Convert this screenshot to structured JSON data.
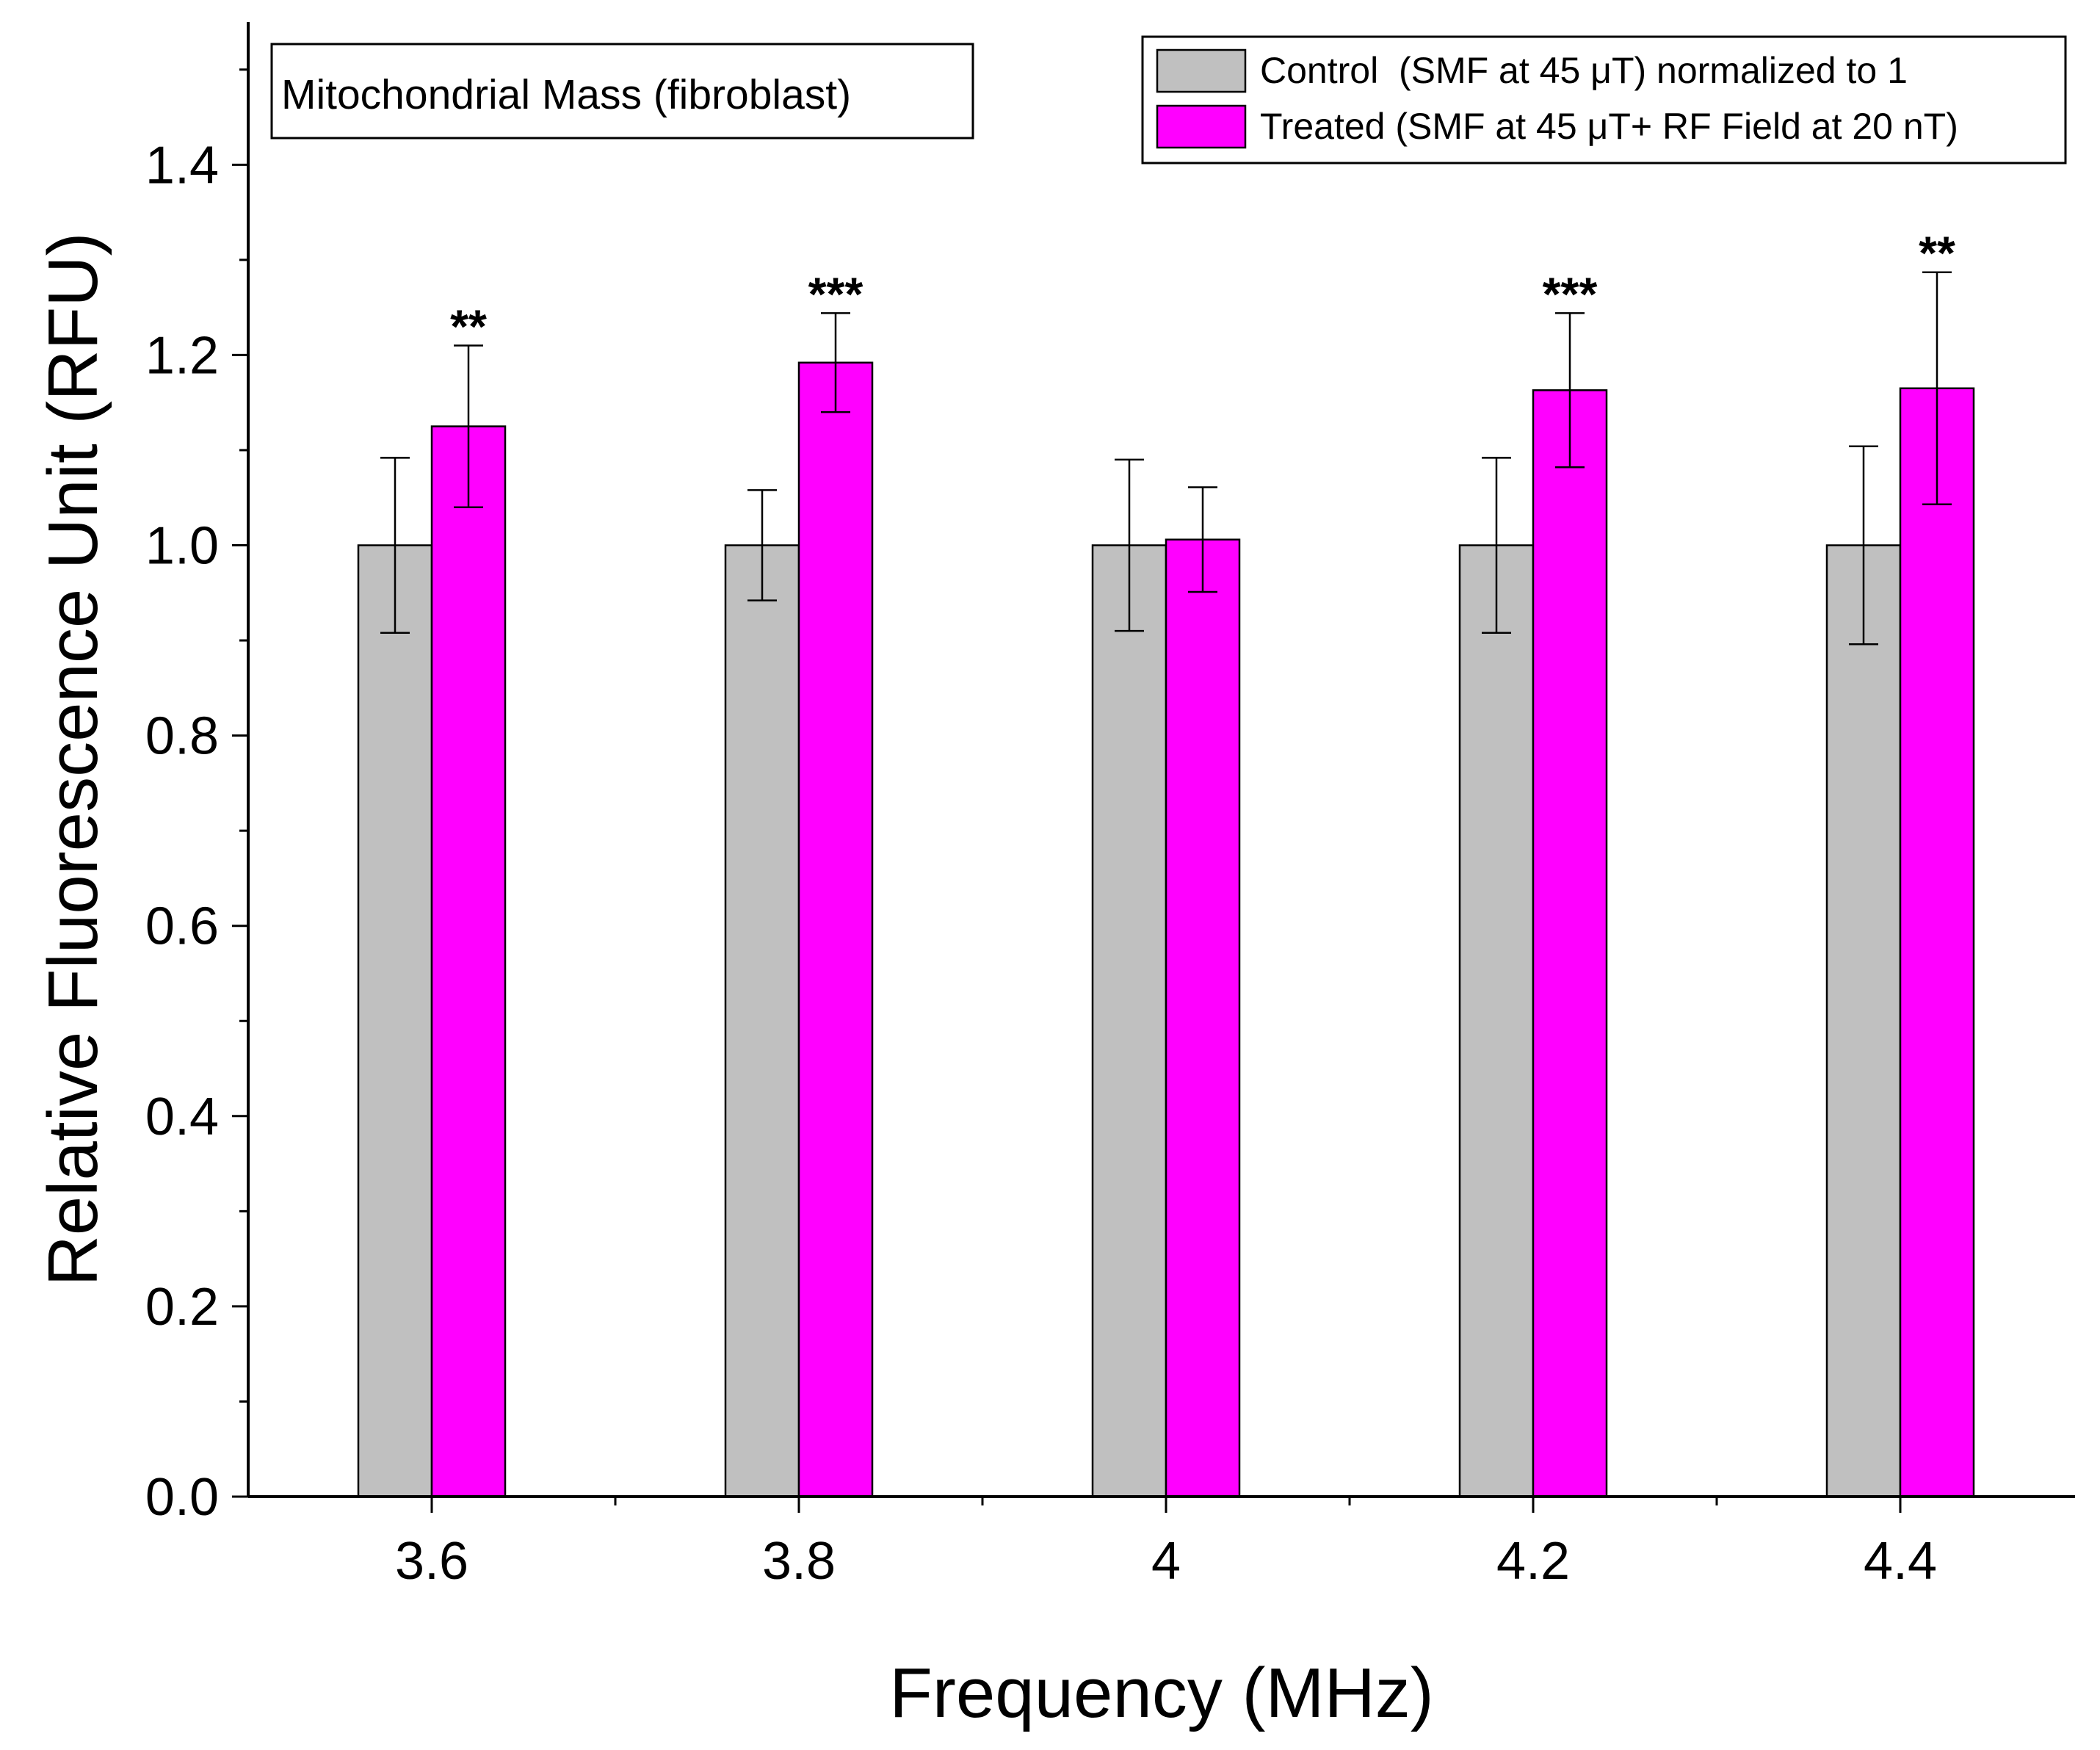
{
  "chart_data": {
    "type": "bar",
    "title": "",
    "annotation": "Mitochondrial Mass (fibroblast)",
    "xlabel": "Frequency (MHz)",
    "ylabel": "Relative Fluorescence Unit (RFU)",
    "categories": [
      "3.6",
      "3.8",
      "4",
      "4.2",
      "4.4"
    ],
    "ylim": [
      0,
      1.55
    ],
    "yticks": [
      0.0,
      0.2,
      0.4,
      0.6,
      0.8,
      1.0,
      1.2,
      1.4
    ],
    "ytick_labels": [
      "0.0",
      "0.2",
      "0.4",
      "0.6",
      "0.8",
      "1.0",
      "1.2",
      "1.4"
    ],
    "legend_position": "top-right",
    "series": [
      {
        "name": "Control  (SMF at 45 μT) normalized to 1",
        "color": "#c0c0c0",
        "values": [
          1.0,
          1.0,
          1.0,
          1.0,
          1.0
        ],
        "errors": [
          0.092,
          0.058,
          0.09,
          0.092,
          0.104
        ]
      },
      {
        "name": "Treated (SMF at 45 μT+ RF Field at 20 nT)",
        "color": "#ff00ff",
        "values": [
          1.125,
          1.192,
          1.006,
          1.163,
          1.165
        ],
        "errors": [
          0.085,
          0.052,
          0.055,
          0.081,
          0.122
        ]
      }
    ],
    "significance": [
      "**",
      "***",
      "",
      "***",
      "**"
    ]
  }
}
